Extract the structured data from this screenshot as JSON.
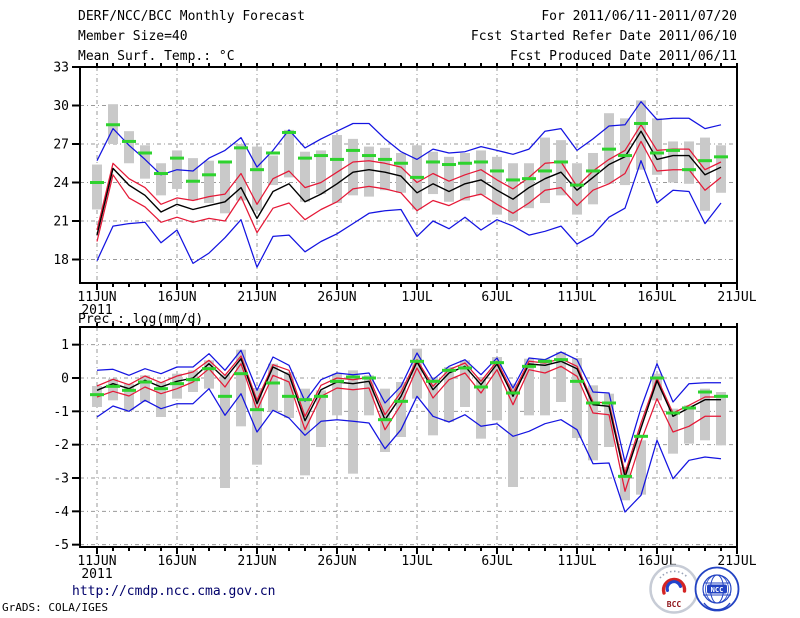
{
  "header": {
    "left": [
      "DERF/NCC/BCC Monthly Forecast",
      "Member Size=40",
      "Mean Surf. Temp.: °C"
    ],
    "right": [
      "For 2011/06/11-2011/07/20",
      "Fcst Started Refer Date 2011/06/10",
      "Fcst Produced Date 2011/06/11"
    ]
  },
  "footer": {
    "url": "http://cmdp.ncc.cma.gov.cn",
    "credit": "GrADS: COLA/IGES",
    "logo_bcc_label": "BCC",
    "logo_ncc_label": "NCC"
  },
  "colors": {
    "envelope_blue": "#1414e1",
    "quartile_red": "#e51937",
    "mean_black": "#000000",
    "obs_green": "#2ed22e",
    "spread_gray": "#c9c9c9",
    "grid_gray": "#9a9a9a"
  },
  "chart_data": [
    {
      "type": "line",
      "title": "Mean Surf. Temp.: °C",
      "date_range": "2011/06/11 - 2011/07/20",
      "n_days": 40,
      "x_tick_labels": [
        "11JUN",
        "16JUN",
        "21JUN",
        "26JUN",
        "1JUL",
        "6JUL",
        "11JUL",
        "16JUL",
        "21JUL"
      ],
      "x_tick_days": [
        0,
        5,
        10,
        15,
        20,
        25,
        30,
        35,
        40
      ],
      "x_year_label": "2011",
      "y_ticks": [
        18,
        21,
        24,
        27,
        30,
        33
      ],
      "ylim": [
        16.2,
        33
      ],
      "grid": true,
      "series": [
        {
          "name": "ensemble max (blue)",
          "color": "#1414e1",
          "values": [
            25.7,
            28.2,
            26.9,
            25.8,
            24.6,
            25.0,
            24.9,
            25.9,
            26.5,
            27.5,
            25.2,
            26.5,
            28.1,
            26.7,
            27.4,
            28.0,
            28.6,
            28.6,
            27.4,
            26.4,
            25.8,
            26.6,
            26.3,
            26.4,
            26.8,
            26.5,
            26.2,
            26.6,
            28.0,
            28.2,
            26.5,
            27.4,
            28.4,
            28.5,
            30.3,
            28.9,
            29.0,
            29.0,
            28.2,
            28.5
          ]
        },
        {
          "name": "ensemble min (blue)",
          "color": "#1414e1",
          "values": [
            17.9,
            20.6,
            20.8,
            20.9,
            19.3,
            20.3,
            17.7,
            18.5,
            19.7,
            21.1,
            17.4,
            19.8,
            19.9,
            18.6,
            19.4,
            20.0,
            20.8,
            21.6,
            21.8,
            21.9,
            19.8,
            21.0,
            20.4,
            21.3,
            20.3,
            21.1,
            20.6,
            19.9,
            20.2,
            20.6,
            19.2,
            19.9,
            21.3,
            22.0,
            25.7,
            22.4,
            23.4,
            23.3,
            20.8,
            22.4
          ]
        },
        {
          "name": "ensemble upper quartile (red)",
          "color": "#e51937",
          "values": [
            20.3,
            25.5,
            24.3,
            23.6,
            22.3,
            22.8,
            22.6,
            22.9,
            23.1,
            24.7,
            22.3,
            24.3,
            24.9,
            23.6,
            24.0,
            24.8,
            25.6,
            25.7,
            25.5,
            25.2,
            24.0,
            24.7,
            24.1,
            24.6,
            25.0,
            24.2,
            23.5,
            24.4,
            25.5,
            25.6,
            23.7,
            24.9,
            25.8,
            26.5,
            28.5,
            26.5,
            26.6,
            26.6,
            25.0,
            25.6
          ]
        },
        {
          "name": "ensemble lower quartile (red)",
          "color": "#e51937",
          "values": [
            19.4,
            24.6,
            22.8,
            22.1,
            20.9,
            21.3,
            20.9,
            21.2,
            21.0,
            22.9,
            20.1,
            22.0,
            22.4,
            21.1,
            21.9,
            22.5,
            23.5,
            23.7,
            23.5,
            23.2,
            21.8,
            22.6,
            22.2,
            22.8,
            23.1,
            22.3,
            21.6,
            22.4,
            23.4,
            23.6,
            22.2,
            23.4,
            23.9,
            24.7,
            27.2,
            24.9,
            25.0,
            25.0,
            23.4,
            24.4
          ]
        },
        {
          "name": "ensemble mean (black)",
          "color": "#000000",
          "values": [
            19.9,
            25.1,
            23.8,
            23.0,
            21.7,
            22.3,
            21.9,
            22.2,
            22.5,
            23.6,
            21.2,
            23.3,
            23.9,
            22.5,
            23.1,
            23.9,
            24.8,
            25.0,
            24.8,
            24.5,
            23.2,
            23.9,
            23.3,
            23.9,
            24.2,
            23.4,
            22.7,
            23.6,
            24.3,
            24.8,
            23.4,
            24.4,
            25.4,
            26.0,
            28.0,
            25.8,
            26.1,
            26.1,
            24.6,
            25.2
          ]
        }
      ],
      "obs_dash": {
        "name": "reference value (green dash)",
        "color": "#2ed22e",
        "values": [
          24.0,
          28.5,
          27.2,
          26.3,
          24.7,
          25.9,
          24.1,
          24.6,
          25.6,
          26.7,
          25.0,
          26.3,
          27.9,
          25.9,
          26.1,
          25.8,
          26.5,
          26.1,
          25.8,
          25.5,
          24.4,
          25.6,
          25.4,
          25.5,
          25.6,
          24.9,
          24.2,
          24.3,
          24.9,
          25.6,
          23.8,
          24.9,
          26.6,
          26.1,
          28.6,
          26.3,
          26.5,
          25.0,
          25.7,
          26.0
        ]
      },
      "spread_bars": {
        "name": "member spread (gray bar)",
        "color": "#c9c9c9",
        "low": [
          21.9,
          27.0,
          25.5,
          24.3,
          23.0,
          23.5,
          22.6,
          22.4,
          21.6,
          22.6,
          21.8,
          23.8,
          24.4,
          22.5,
          23.1,
          22.4,
          23.0,
          22.9,
          23.4,
          23.2,
          21.9,
          23.1,
          22.5,
          22.6,
          23.0,
          21.5,
          21.0,
          22.0,
          22.4,
          23.0,
          21.5,
          22.3,
          23.9,
          23.8,
          25.0,
          24.6,
          24.0,
          23.9,
          21.8,
          23.2
        ],
        "high": [
          25.4,
          30.1,
          28.0,
          26.9,
          25.5,
          26.5,
          25.9,
          25.7,
          25.5,
          27.0,
          26.8,
          26.1,
          28.1,
          26.4,
          26.5,
          27.7,
          27.4,
          26.8,
          26.7,
          26.3,
          26.9,
          26.4,
          26.0,
          26.3,
          26.5,
          26.0,
          25.5,
          25.5,
          27.5,
          27.3,
          25.5,
          26.3,
          29.4,
          29.0,
          30.4,
          29.0,
          27.2,
          27.2,
          27.5,
          26.9
        ]
      }
    },
    {
      "type": "line",
      "title": "Prec.: log(mm/d)",
      "date_range": "2011/06/11 - 2011/07/20",
      "n_days": 40,
      "x_tick_labels": [
        "11JUN",
        "16JUN",
        "21JUN",
        "26JUN",
        "1JUL",
        "6JUL",
        "11JUL",
        "16JUL",
        "21JUL"
      ],
      "x_tick_days": [
        0,
        5,
        10,
        15,
        20,
        25,
        30,
        35,
        40
      ],
      "x_year_label": "2011",
      "y_ticks": [
        -5,
        -4,
        -3,
        -2,
        -1,
        0,
        1
      ],
      "ylim": [
        -5.1,
        1.5
      ],
      "grid": true,
      "series": [
        {
          "name": "ensemble max (blue)",
          "color": "#1414e1",
          "values": [
            0.23,
            0.26,
            0.08,
            0.28,
            0.13,
            0.33,
            0.33,
            0.73,
            0.23,
            0.83,
            -0.37,
            0.63,
            0.38,
            -0.7,
            -0.05,
            0.15,
            0.1,
            0.15,
            -0.75,
            -0.25,
            0.75,
            -0.05,
            0.35,
            0.55,
            0.1,
            0.6,
            -0.3,
            0.6,
            0.55,
            0.78,
            0.55,
            -0.42,
            -0.45,
            -2.52,
            -0.9,
            0.43,
            -0.72,
            -0.17,
            -0.14,
            -0.14
          ]
        },
        {
          "name": "ensemble min (blue)",
          "color": "#1414e1",
          "values": [
            -1.17,
            -0.84,
            -1.0,
            -0.67,
            -0.92,
            -0.77,
            -0.77,
            -0.32,
            -1.12,
            -0.47,
            -1.62,
            -0.97,
            -1.2,
            -1.72,
            -1.3,
            -1.25,
            -1.3,
            -1.35,
            -2.12,
            -1.55,
            -0.55,
            -1.15,
            -1.32,
            -1.1,
            -1.45,
            -1.37,
            -1.75,
            -1.6,
            -1.37,
            -1.25,
            -1.55,
            -2.57,
            -2.55,
            -4.02,
            -3.52,
            -1.87,
            -3.02,
            -2.47,
            -2.37,
            -2.42
          ]
        },
        {
          "name": "ensemble upper quartile (red)",
          "color": "#e51937",
          "values": [
            -0.24,
            -0.04,
            -0.2,
            0.06,
            -0.14,
            0.06,
            0.18,
            0.53,
            0.08,
            0.66,
            -0.67,
            0.4,
            0.23,
            -1.15,
            -0.22,
            0.0,
            -0.05,
            0.02,
            -1.1,
            -0.42,
            0.55,
            -0.25,
            0.25,
            0.45,
            -0.1,
            0.5,
            -0.45,
            0.5,
            0.45,
            0.58,
            0.35,
            -0.72,
            -0.75,
            -2.85,
            -1.35,
            0.0,
            -1.05,
            -0.82,
            -0.57,
            -0.57
          ]
        },
        {
          "name": "ensemble lower quartile (red)",
          "color": "#e51937",
          "values": [
            -0.57,
            -0.4,
            -0.54,
            -0.27,
            -0.47,
            -0.32,
            -0.12,
            0.28,
            -0.27,
            0.43,
            -0.97,
            0.08,
            -0.12,
            -1.55,
            -0.55,
            -0.3,
            -0.35,
            -0.3,
            -1.55,
            -0.8,
            0.3,
            -0.6,
            -0.05,
            0.15,
            -0.45,
            0.25,
            -0.8,
            0.25,
            0.15,
            0.35,
            0.05,
            -1.05,
            -1.1,
            -3.4,
            -1.9,
            -0.62,
            -1.62,
            -1.45,
            -1.15,
            -1.15
          ]
        },
        {
          "name": "ensemble mean (black)",
          "color": "#000000",
          "values": [
            -0.37,
            -0.17,
            -0.32,
            -0.07,
            -0.27,
            -0.1,
            0.0,
            0.43,
            -0.02,
            0.58,
            -0.77,
            0.33,
            0.1,
            -1.28,
            -0.35,
            -0.12,
            -0.17,
            -0.1,
            -1.25,
            -0.55,
            0.48,
            -0.35,
            0.15,
            0.35,
            -0.2,
            0.42,
            -0.55,
            0.42,
            0.38,
            0.5,
            0.28,
            -0.8,
            -0.85,
            -2.97,
            -1.5,
            -0.08,
            -1.15,
            -0.9,
            -0.65,
            -0.65
          ]
        }
      ],
      "obs_dash": {
        "name": "reference value (green dash)",
        "color": "#2ed22e",
        "values": [
          -0.5,
          -0.25,
          -0.37,
          -0.12,
          -0.32,
          -0.17,
          -0.05,
          0.28,
          -0.55,
          0.13,
          -0.95,
          -0.15,
          -0.55,
          -0.65,
          -0.55,
          -0.1,
          0.03,
          0.0,
          -1.25,
          -0.7,
          0.5,
          -0.1,
          0.23,
          0.3,
          -0.27,
          0.46,
          -0.45,
          0.35,
          0.5,
          0.55,
          -0.1,
          -0.75,
          -0.75,
          -2.95,
          -1.75,
          0.0,
          -1.05,
          -0.9,
          -0.42,
          -0.55
        ]
      },
      "spread_bars": {
        "name": "member spread (gray bar)",
        "color": "#c9c9c9",
        "low": [
          -0.87,
          -0.67,
          -0.97,
          -0.72,
          -1.17,
          -0.62,
          -0.42,
          -0.32,
          -3.3,
          -1.45,
          -2.6,
          -1.0,
          -1.2,
          -2.92,
          -2.07,
          -1.12,
          -2.87,
          -1.12,
          -2.22,
          -1.77,
          -0.62,
          -1.72,
          -1.32,
          -0.87,
          -1.82,
          -1.27,
          -3.27,
          -1.12,
          -1.12,
          -0.72,
          -1.8,
          -2.47,
          -2.07,
          -3.67,
          -3.5,
          -0.67,
          -2.27,
          -1.97,
          -1.87,
          -2.02
        ],
        "high": [
          -0.24,
          -0.02,
          -0.17,
          0.08,
          -0.12,
          0.13,
          0.23,
          0.53,
          0.1,
          0.85,
          -0.3,
          0.43,
          0.18,
          -0.32,
          -0.37,
          0.13,
          0.23,
          0.08,
          -0.32,
          -0.12,
          0.88,
          0.03,
          0.33,
          0.53,
          0.03,
          0.63,
          -0.17,
          0.58,
          0.58,
          0.78,
          0.6,
          -0.22,
          -0.47,
          -2.67,
          -1.87,
          0.13,
          -0.92,
          -0.82,
          -0.32,
          -0.42
        ]
      }
    }
  ]
}
